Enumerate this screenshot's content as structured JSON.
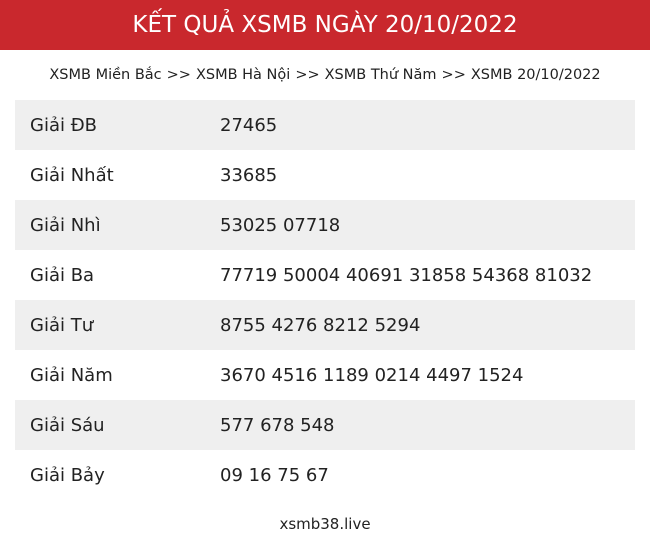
{
  "header": {
    "title": "KẾT QUẢ XSMB NGÀY 20/10/2022"
  },
  "breadcrumb": {
    "items": [
      "XSMB Miền Bắc",
      "XSMB Hà Nội",
      "XSMB Thứ Năm",
      "XSMB 20/10/2022"
    ],
    "separator": ">>"
  },
  "table": {
    "rows": [
      [
        "Giải ĐB",
        "27465"
      ],
      [
        "Giải Nhất",
        "33685"
      ],
      [
        "Giải Nhì",
        "53025 07718"
      ],
      [
        "Giải Ba",
        "77719 50004 40691 31858 54368 81032"
      ],
      [
        "Giải Tư",
        "8755 4276 8212 5294"
      ],
      [
        "Giải Năm",
        "3670 4516 1189 0214 4497 1524"
      ],
      [
        "Giải Sáu",
        "577 678 548"
      ],
      [
        "Giải Bảy",
        "09 16 75 67"
      ]
    ]
  },
  "footer": {
    "text": "xsmb38.live"
  }
}
